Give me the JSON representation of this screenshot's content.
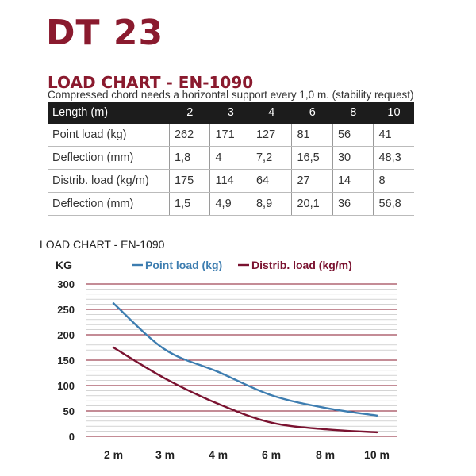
{
  "product": {
    "title": "DT 23"
  },
  "section": {
    "title": "LOAD CHART - EN-1090",
    "note": "Compressed chord needs a horizontal support every 1,0 m. (stability request)"
  },
  "table": {
    "header": {
      "label": "Length (m)",
      "values": [
        "2",
        "3",
        "4",
        "6",
        "8",
        "10"
      ]
    },
    "rows": [
      {
        "label": "Point load (kg)",
        "values": [
          "262",
          "171",
          "127",
          "81",
          "56",
          "41"
        ]
      },
      {
        "label": "Deflection (mm)",
        "values": [
          "1,8",
          "4",
          "7,2",
          "16,5",
          "30",
          "48,3"
        ]
      },
      {
        "label": "Distrib. load (kg/m)",
        "values": [
          "175",
          "114",
          "64",
          "27",
          "14",
          "8"
        ]
      },
      {
        "label": "Deflection (mm)",
        "values": [
          "1,5",
          "4,9",
          "8,9",
          "20,1",
          "36",
          "56,8"
        ]
      }
    ]
  },
  "chart_data": {
    "type": "line",
    "title": "LOAD CHART - EN-1090",
    "ylabel": "KG",
    "xlabel": "",
    "categories": [
      "2 m",
      "3 m",
      "4 m",
      "6 m",
      "8 m",
      "10 m"
    ],
    "yticks": [
      0,
      50,
      100,
      150,
      200,
      250,
      300
    ],
    "ylim": [
      0,
      300
    ],
    "grid": true,
    "legend": "top-center",
    "series": [
      {
        "name": "Point load (kg)",
        "color": "#3d7db0",
        "values": [
          262,
          171,
          127,
          81,
          56,
          41
        ]
      },
      {
        "name": "Distrib. load (kg/m)",
        "color": "#7a1230",
        "values": [
          175,
          114,
          64,
          27,
          14,
          8
        ]
      }
    ],
    "grid_color_major": "#8a1a2e",
    "grid_color_minor": "#bbbbbb"
  },
  "colors": {
    "brand": "#8a1a2e",
    "header_bg": "#1c1c1c"
  }
}
